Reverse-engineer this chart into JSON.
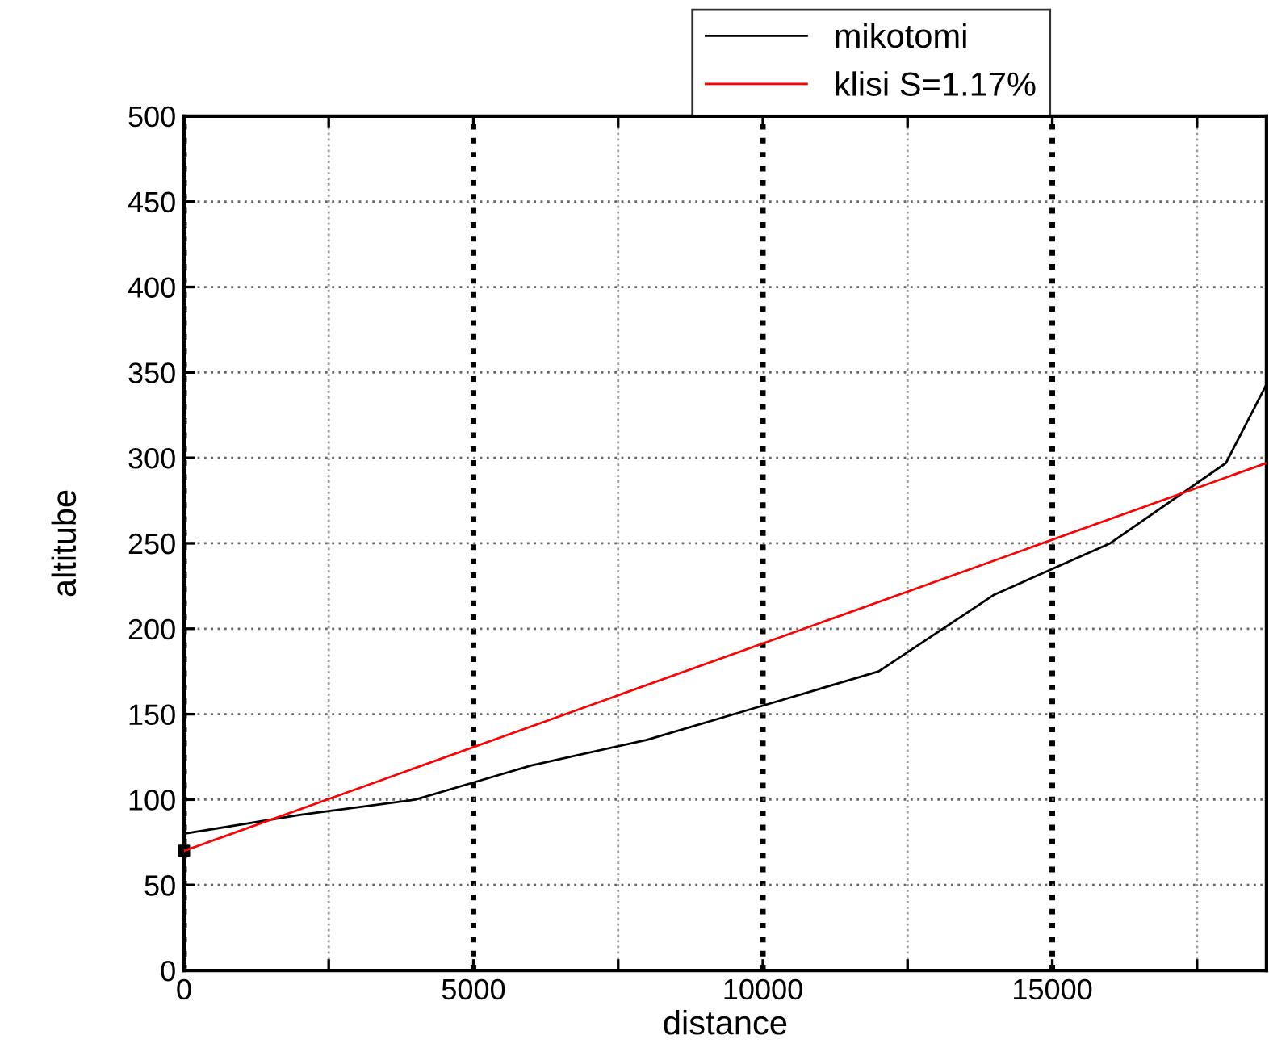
{
  "chart_data": {
    "type": "line",
    "xlabel": "distance",
    "ylabel": "altitube",
    "xlim": [
      0,
      18700
    ],
    "ylim": [
      0,
      500
    ],
    "xticks": [
      0,
      {
        "value": 2500,
        "label": null
      },
      5000,
      {
        "value": 7500,
        "label": null
      },
      10000,
      {
        "value": 12500,
        "label": null
      },
      15000,
      {
        "value": 17500,
        "label": null
      }
    ],
    "yticks": [
      0,
      50,
      100,
      150,
      200,
      250,
      300,
      350,
      400,
      450,
      500
    ],
    "grid": true,
    "legend": "top right",
    "line_style": "solid",
    "series": [
      {
        "name": "mikotomi",
        "color": "#000000",
        "x": [
          0,
          2000,
          4000,
          5000,
          6000,
          8000,
          10000,
          12000,
          14000,
          16000,
          18000,
          18700
        ],
        "values": [
          80,
          91,
          100,
          110,
          120,
          135,
          155,
          175,
          220,
          250,
          297,
          343
        ]
      },
      {
        "name": "klisi S=1.17%",
        "color": "#ff0000",
        "x": [
          0,
          18700
        ],
        "values": [
          70,
          297
        ]
      },
      {
        "type": "scatter",
        "marker": "square",
        "color": "#000000",
        "x": [
          0
        ],
        "values": [
          70
        ]
      }
    ]
  }
}
